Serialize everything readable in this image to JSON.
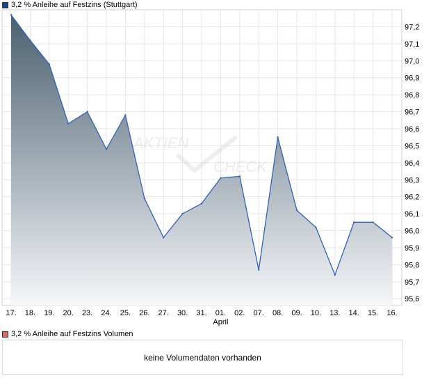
{
  "legend": {
    "price_label": "3,2 % Anleihe auf Festzins (Stuttgart)",
    "volume_label": "3,2 % Anleihe auf Festzins Volumen",
    "price_color": "#1f3f8f",
    "volume_color": "#d46a6a"
  },
  "watermark": {
    "line1": "AKTIEN",
    "line2": "CHECK"
  },
  "volume_panel": {
    "message": "keine Volumendaten vorhanden"
  },
  "chart_data": {
    "type": "area",
    "categories": [
      "17.",
      "18.",
      "19.",
      "20.",
      "23.",
      "24.",
      "25.",
      "26.",
      "27.",
      "30.",
      "31.",
      "01.",
      "02.",
      "07.",
      "08.",
      "09.",
      "10.",
      "13.",
      "14.",
      "15.",
      "16."
    ],
    "sublabels": {
      "01.": "April"
    },
    "series": [
      {
        "values": [
          97.27,
          97.12,
          96.98,
          96.63,
          96.7,
          96.48,
          96.68,
          96.19,
          95.96,
          96.1,
          96.16,
          96.31,
          96.32,
          95.77,
          96.55,
          96.12,
          96.02,
          95.74,
          96.05,
          96.05,
          95.96
        ]
      }
    ],
    "ylim": [
      95.56,
      97.3
    ],
    "yticks": [
      95.6,
      95.7,
      95.8,
      95.9,
      96.0,
      96.1,
      96.2,
      96.3,
      96.4,
      96.5,
      96.6,
      96.7,
      96.8,
      96.9,
      97.0,
      97.1,
      97.2
    ],
    "ytick_labels": [
      "95,6",
      "95,7",
      "95,8",
      "95,9",
      "96,0",
      "96,1",
      "96,2",
      "96,3",
      "96,4",
      "96,5",
      "96,6",
      "96,7",
      "96,8",
      "96,9",
      "97,0",
      "97,1",
      "97,2"
    ],
    "grid": true,
    "legend_position": "top-left",
    "line_color": "#2f63b8",
    "fill_top_color": "#4b6070",
    "fill_bottom_color": "#f6f7f9"
  }
}
